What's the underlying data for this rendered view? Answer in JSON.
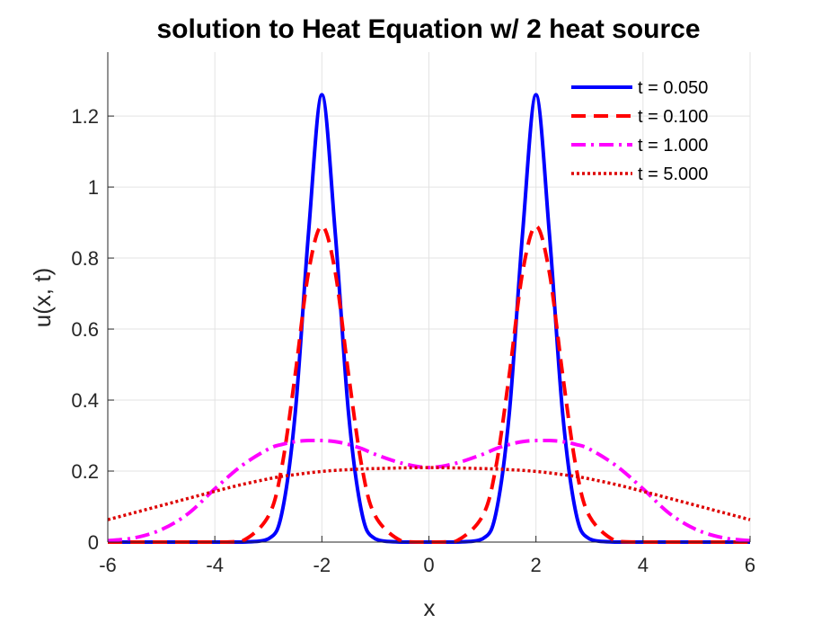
{
  "chart_data": {
    "type": "line",
    "title": "solution to Heat Equation w/ 2 heat source",
    "xlabel": "x",
    "ylabel": "u(x, t)",
    "xlim": [
      -6,
      6
    ],
    "ylim": [
      0,
      1.38
    ],
    "xticks": [
      -6,
      -4,
      -2,
      0,
      2,
      4,
      6
    ],
    "yticks": [
      0,
      0.2,
      0.4,
      0.6,
      0.8,
      1,
      1.2
    ],
    "xtick_labels": [
      "-6",
      "-4",
      "-2",
      "0",
      "2",
      "4",
      "6"
    ],
    "ytick_labels": [
      "0",
      "0.2",
      "0.4",
      "0.6",
      "0.8",
      "1",
      "1.2"
    ],
    "grid": true,
    "legend_position": "top-right",
    "x": [
      -6,
      -5.5,
      -5,
      -4.5,
      -4,
      -3.5,
      -3,
      -2.75,
      -2.5,
      -2.25,
      -2,
      -1.75,
      -1.5,
      -1.25,
      -1,
      -0.5,
      0,
      0.5,
      1,
      1.25,
      1.5,
      1.75,
      2,
      2.25,
      2.5,
      2.75,
      3,
      3.5,
      4,
      4.5,
      5,
      5.5,
      6
    ],
    "series": [
      {
        "name": "t = 0.050",
        "color": "#0000ff",
        "style": "solid",
        "values": [
          0,
          0,
          0,
          0,
          0,
          0,
          0.009,
          0.08,
          0.36,
          0.87,
          1.26,
          0.87,
          0.36,
          0.08,
          0.009,
          0,
          0,
          0,
          0.009,
          0.08,
          0.36,
          0.87,
          1.26,
          0.87,
          0.36,
          0.08,
          0.009,
          0,
          0,
          0,
          0,
          0,
          0
        ]
      },
      {
        "name": "t = 0.100",
        "color": "#ff0000",
        "style": "dashed",
        "values": [
          0,
          0,
          0,
          0,
          0,
          0.002,
          0.073,
          0.21,
          0.47,
          0.76,
          0.89,
          0.76,
          0.47,
          0.21,
          0.073,
          0.002,
          0,
          0.002,
          0.073,
          0.21,
          0.47,
          0.76,
          0.89,
          0.76,
          0.47,
          0.21,
          0.073,
          0.002,
          0,
          0,
          0,
          0,
          0
        ]
      },
      {
        "name": "t = 1.000",
        "color": "#ff00ff",
        "style": "dashdot",
        "values": [
          0.004,
          0.012,
          0.035,
          0.08,
          0.15,
          0.215,
          0.262,
          0.275,
          0.283,
          0.286,
          0.286,
          0.283,
          0.275,
          0.263,
          0.247,
          0.222,
          0.21,
          0.222,
          0.247,
          0.263,
          0.275,
          0.283,
          0.286,
          0.286,
          0.283,
          0.275,
          0.262,
          0.215,
          0.15,
          0.08,
          0.035,
          0.012,
          0.004
        ]
      },
      {
        "name": "t = 5.000",
        "color": "#dd0000",
        "style": "dotted",
        "values": [
          0.063,
          0.083,
          0.103,
          0.123,
          0.143,
          0.162,
          0.178,
          0.185,
          0.19,
          0.195,
          0.199,
          0.202,
          0.204,
          0.206,
          0.207,
          0.209,
          0.21,
          0.209,
          0.207,
          0.206,
          0.204,
          0.202,
          0.199,
          0.195,
          0.19,
          0.185,
          0.178,
          0.162,
          0.143,
          0.123,
          0.103,
          0.083,
          0.063
        ]
      }
    ]
  }
}
